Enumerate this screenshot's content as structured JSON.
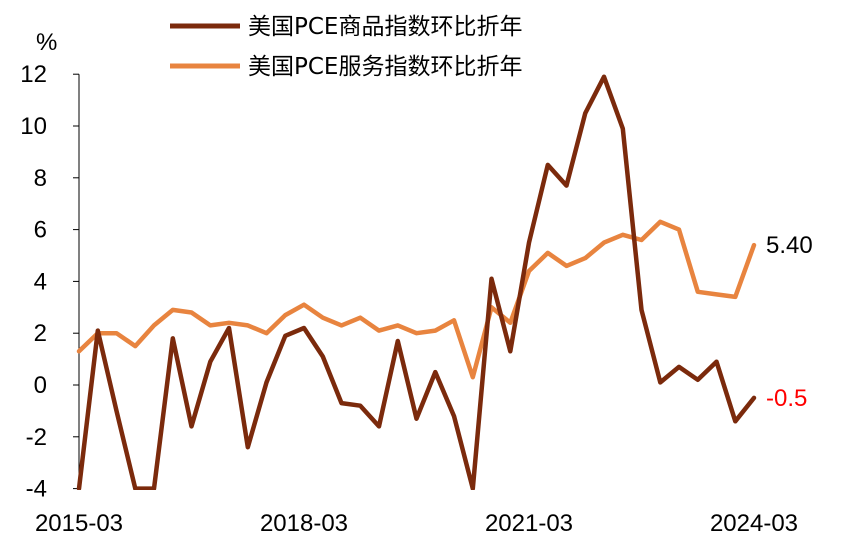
{
  "chart_data": {
    "type": "line",
    "unit": "%",
    "ylim": [
      -4,
      12
    ],
    "yticks": [
      -4,
      -2,
      0,
      2,
      4,
      6,
      8,
      10,
      12
    ],
    "x_tick_labels": [
      "2015-03",
      "2018-03",
      "2021-03",
      "2024-03"
    ],
    "x_tick_positions": [
      0,
      12,
      24,
      36
    ],
    "legend_position": "top",
    "series": [
      {
        "name": "美国PCE商品指数环比折年",
        "color": "#7b2a0c",
        "values": [
          -4.0,
          2.1,
          -1.0,
          -4.0,
          -4.0,
          1.8,
          -1.6,
          0.9,
          2.2,
          -2.4,
          0.1,
          1.9,
          2.2,
          1.1,
          -0.7,
          -0.8,
          -1.6,
          1.7,
          -1.3,
          0.5,
          -1.2,
          -4.0,
          4.1,
          1.3,
          5.5,
          8.5,
          7.7,
          10.5,
          11.9,
          9.9,
          2.9,
          0.1,
          0.7,
          0.2,
          0.9,
          -1.4,
          -0.5
        ],
        "end_label": "-0.5",
        "end_label_color": "#ff0000"
      },
      {
        "name": "美国PCE服务指数环比折年",
        "color": "#e8843f",
        "values": [
          1.3,
          2.0,
          2.0,
          1.5,
          2.3,
          2.9,
          2.8,
          2.3,
          2.4,
          2.3,
          2.0,
          2.7,
          3.1,
          2.6,
          2.3,
          2.6,
          2.1,
          2.3,
          2.0,
          2.1,
          2.5,
          0.3,
          3.0,
          2.4,
          4.4,
          5.1,
          4.6,
          4.9,
          5.5,
          5.8,
          5.6,
          6.3,
          6.0,
          3.6,
          3.5,
          3.4,
          5.4
        ],
        "end_label": "5.40",
        "end_label_color": "#000000"
      }
    ]
  }
}
